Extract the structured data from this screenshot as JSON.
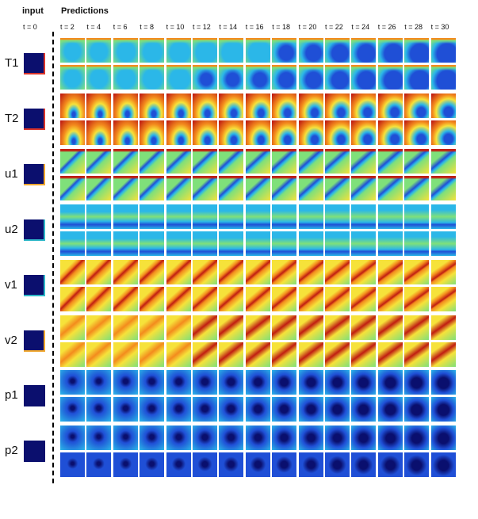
{
  "header": {
    "input_label": "input",
    "predictions_label": "Predictions",
    "t0_label": "t = 0"
  },
  "time_labels": [
    "t = 2",
    "t = 4",
    "t = 6",
    "t = 8",
    "t = 10",
    "t = 12",
    "t = 14",
    "t = 16",
    "t = 18",
    "t = 20",
    "t = 22",
    "t = 24",
    "t = 26",
    "t = 28",
    "t = 30"
  ],
  "variables": [
    {
      "name": "T1",
      "accent": "#d9342b"
    },
    {
      "name": "T2",
      "accent": "#d9342b"
    },
    {
      "name": "u1",
      "accent": "#f0a830"
    },
    {
      "name": "u2",
      "accent": "#2fb8c8"
    },
    {
      "name": "v1",
      "accent": "#2fb8c8"
    },
    {
      "name": "v2",
      "accent": "#f0a830"
    },
    {
      "name": "p1",
      "accent": ""
    },
    {
      "name": "p2",
      "accent": ""
    }
  ],
  "colormap": [
    "#0a0f6e",
    "#1f4fd6",
    "#2bb7e8",
    "#7fe07a",
    "#f6e23a",
    "#f38b1d",
    "#c01d12"
  ]
}
